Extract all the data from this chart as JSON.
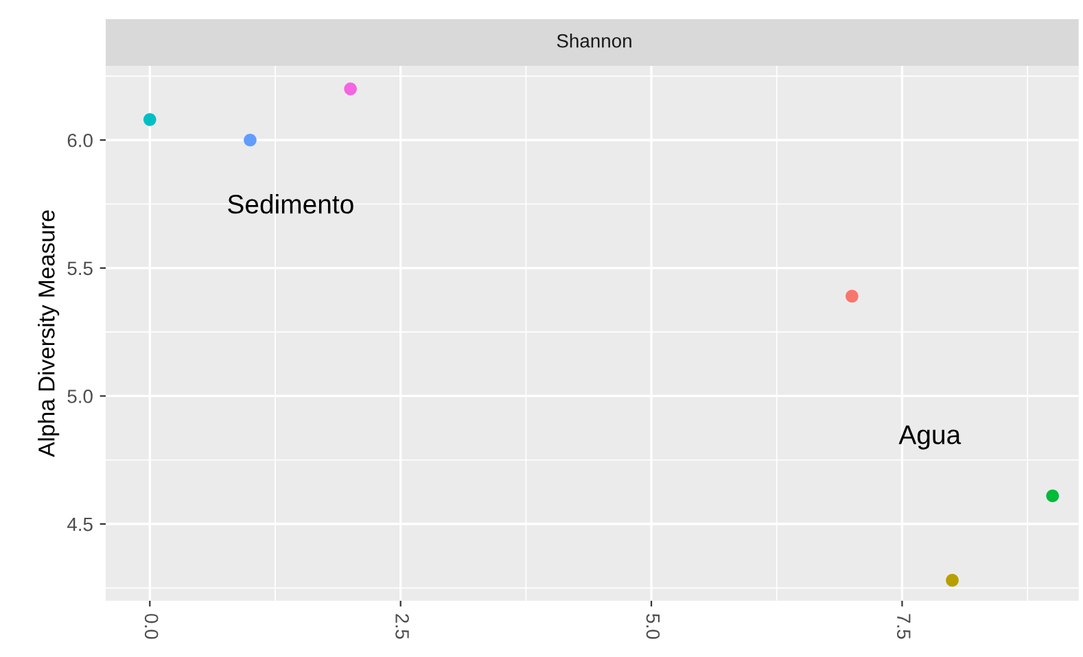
{
  "chart_data": {
    "type": "scatter",
    "title": "Shannon",
    "ylabel": "Alpha Diversity Measure",
    "x": [
      0,
      1,
      2,
      7,
      8,
      9
    ],
    "values": [
      6.08,
      6.0,
      6.2,
      5.39,
      4.28,
      4.61
    ],
    "colors": [
      "#00BFC4",
      "#619CFF",
      "#F564E3",
      "#F8766D",
      "#B79F00",
      "#00BA38"
    ],
    "xlim": [
      -0.44,
      9.26
    ],
    "ylim": [
      4.2,
      6.29
    ],
    "xticks": [
      {
        "value": 0,
        "label": "0.0"
      },
      {
        "value": 2.5,
        "label": "2.5"
      },
      {
        "value": 5,
        "label": "5.0"
      },
      {
        "value": 7.5,
        "label": "7.5"
      }
    ],
    "yticks": [
      {
        "value": 4.5,
        "label": "4.5"
      },
      {
        "value": 5,
        "label": "5.0"
      },
      {
        "value": 5.5,
        "label": "5.5"
      },
      {
        "value": 6,
        "label": "6.0"
      }
    ],
    "annotations": [
      "Sedimento",
      "Agua"
    ],
    "grid": true,
    "marker": "circle"
  }
}
